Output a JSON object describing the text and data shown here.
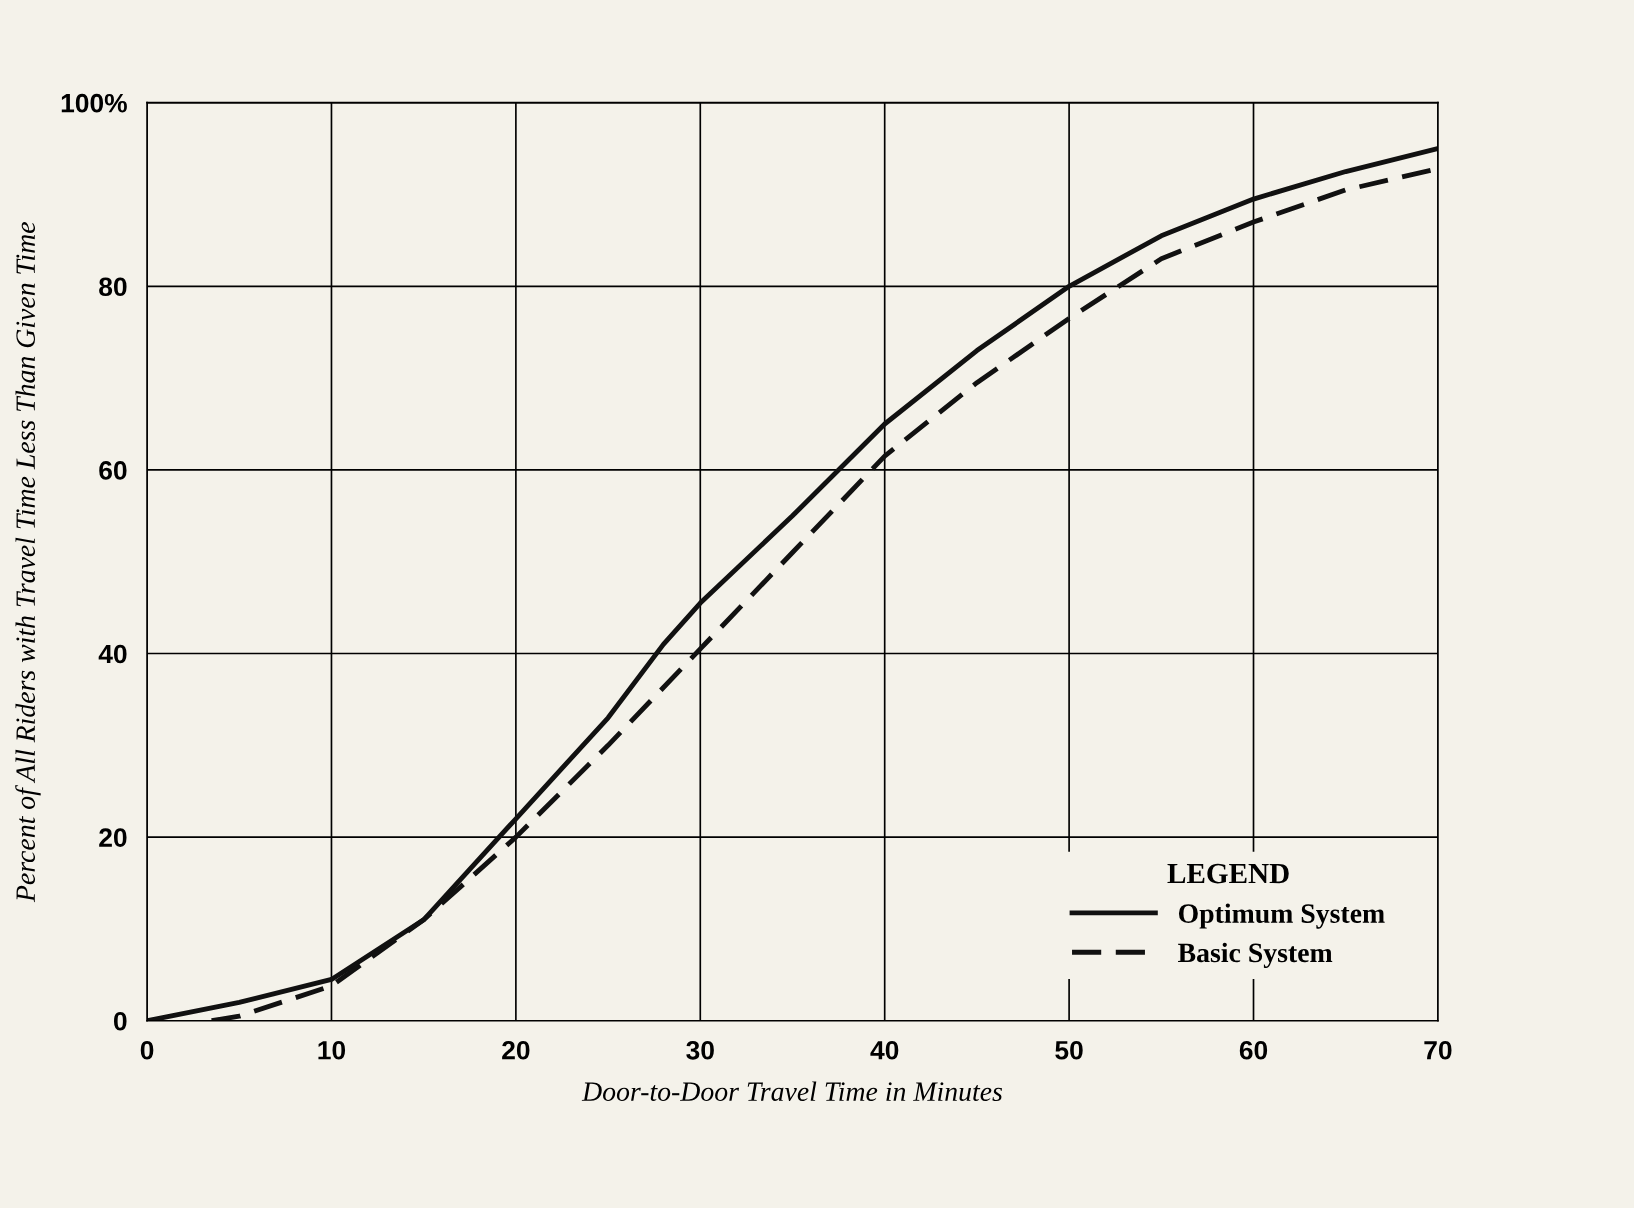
{
  "chart_data": {
    "type": "line",
    "xlabel": "Door-to-Door Travel Time in Minutes",
    "ylabel": "Percent of All Riders with Travel Time Less Than Given Time",
    "legend_title": "LEGEND",
    "legend": "bottom right",
    "grid": true,
    "xlim": [
      0,
      70
    ],
    "ylim": [
      0,
      100
    ],
    "xticks": [
      0,
      10,
      20,
      30,
      40,
      50,
      60,
      70
    ],
    "yticks": [
      0,
      20,
      40,
      60,
      80,
      {
        "value": 100,
        "label": "100%"
      }
    ],
    "series": [
      {
        "name": "Optimum System",
        "color": "#111111",
        "line_style": "solid",
        "x": [
          0,
          5,
          10,
          15,
          20,
          25,
          28,
          30,
          35,
          40,
          45,
          50,
          55,
          60,
          65,
          70
        ],
        "values": [
          0,
          2,
          4.5,
          11,
          22,
          33,
          41,
          45.5,
          55,
          65,
          73,
          80,
          85.5,
          89.5,
          92.5,
          95
        ]
      },
      {
        "name": "Basic System",
        "color": "#111111",
        "line_style": "dashed",
        "x": [
          3.5,
          5,
          10,
          15,
          20,
          25,
          30,
          35,
          40,
          45,
          50,
          55,
          60,
          65,
          70
        ],
        "values": [
          0,
          0.5,
          3.8,
          11,
          20,
          30,
          40.5,
          51,
          61.5,
          69.5,
          76.5,
          83,
          87,
          90.5,
          92.8
        ]
      }
    ]
  }
}
